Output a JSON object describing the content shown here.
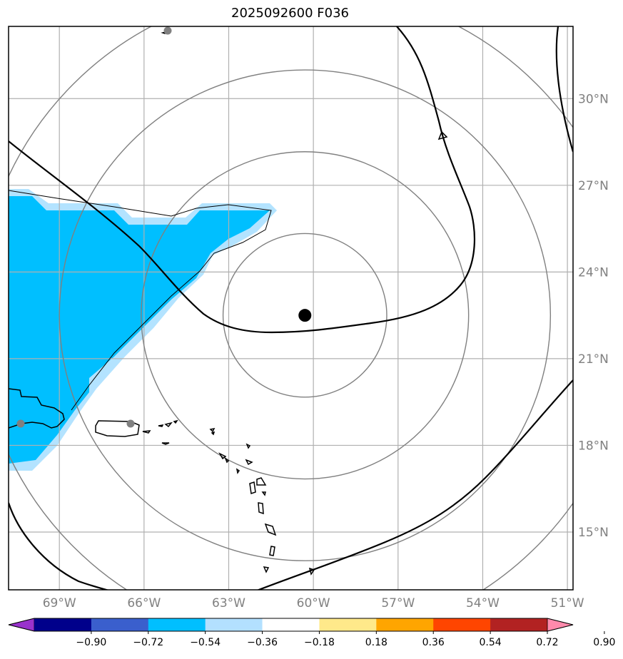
{
  "title": "2025092600 F036",
  "map": {
    "lon_range": [
      -70.8,
      -50.8
    ],
    "lat_range": [
      13.0,
      32.5
    ],
    "lon_ticks": [
      {
        "lon": -69,
        "label": "69°W"
      },
      {
        "lon": -66,
        "label": "66°W"
      },
      {
        "lon": -63,
        "label": "63°W"
      },
      {
        "lon": -60,
        "label": "60°W"
      },
      {
        "lon": -57,
        "label": "57°W"
      },
      {
        "lon": -54,
        "label": "54°W"
      },
      {
        "lon": -51,
        "label": "51°W"
      }
    ],
    "lat_ticks": [
      {
        "lat": 15,
        "label": "15°N"
      },
      {
        "lat": 18,
        "label": "18°N"
      },
      {
        "lat": 21,
        "label": "21°N"
      },
      {
        "lat": 24,
        "label": "24°N"
      },
      {
        "lat": 27,
        "label": "27°N"
      },
      {
        "lat": 30,
        "label": "30°N"
      }
    ],
    "storm_center": {
      "lon": -60.3,
      "lat": 22.5
    },
    "range_rings_deg": [
      2.9,
      5.8,
      8.7,
      11.6
    ],
    "grid": true,
    "colors": {
      "ring": "#808080",
      "grid": "#b0b0b0",
      "fill_dark": "#00bfff",
      "fill_light": "#b3e3ff"
    }
  },
  "colorbar": {
    "colors": [
      "#9932cc",
      "#00008b",
      "#3a5fcd",
      "#00bfff",
      "#b3e0ff",
      "#ffffff",
      "#ffe98a",
      "#ffa500",
      "#ff4500",
      "#b22222",
      "#ff8aac"
    ],
    "labels": [
      "−0.90",
      "−0.72",
      "−0.54",
      "−0.36",
      "−0.18",
      "0.18",
      "0.36",
      "0.54",
      "0.72",
      "0.90"
    ]
  }
}
